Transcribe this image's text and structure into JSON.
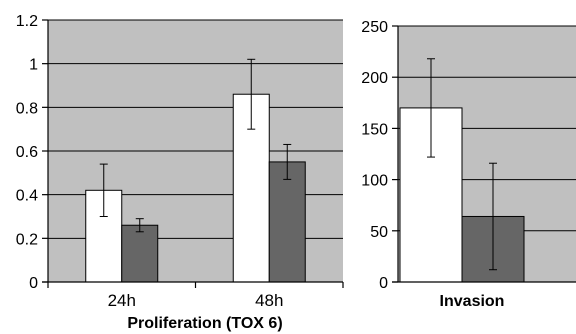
{
  "chart_data": [
    {
      "type": "bar",
      "title": "",
      "xlabel": "Proliferation (TOX 6)",
      "ylabel": "",
      "categories": [
        "24h",
        "48h"
      ],
      "ylim": [
        0,
        1.2
      ],
      "yticks": [
        "0",
        "0.2",
        "0.4",
        "0.6",
        "0.8",
        "1",
        "1.2"
      ],
      "grid": true,
      "legend": "none",
      "series": [
        {
          "values": [
            0.42,
            0.86
          ],
          "error": [
            0.12,
            0.16
          ],
          "color": "#ffffff"
        },
        {
          "values": [
            0.26,
            0.55
          ],
          "error": [
            0.03,
            0.08
          ],
          "color": "#666666"
        }
      ]
    },
    {
      "type": "bar",
      "title": "",
      "xlabel": "Invasion",
      "ylabel": "",
      "categories": [
        ""
      ],
      "ylim": [
        0,
        250
      ],
      "yticks": [
        "0",
        "50",
        "100",
        "150",
        "200",
        "250"
      ],
      "grid": true,
      "legend": "none",
      "series": [
        {
          "values": [
            170
          ],
          "error": [
            48
          ],
          "color": "#ffffff"
        },
        {
          "values": [
            64
          ],
          "error": [
            52
          ],
          "color": "#666666"
        }
      ]
    }
  ],
  "style": {
    "plot_background": "#c0c0c0",
    "gridline_color": "#000000",
    "bar_stroke": "#000000"
  }
}
